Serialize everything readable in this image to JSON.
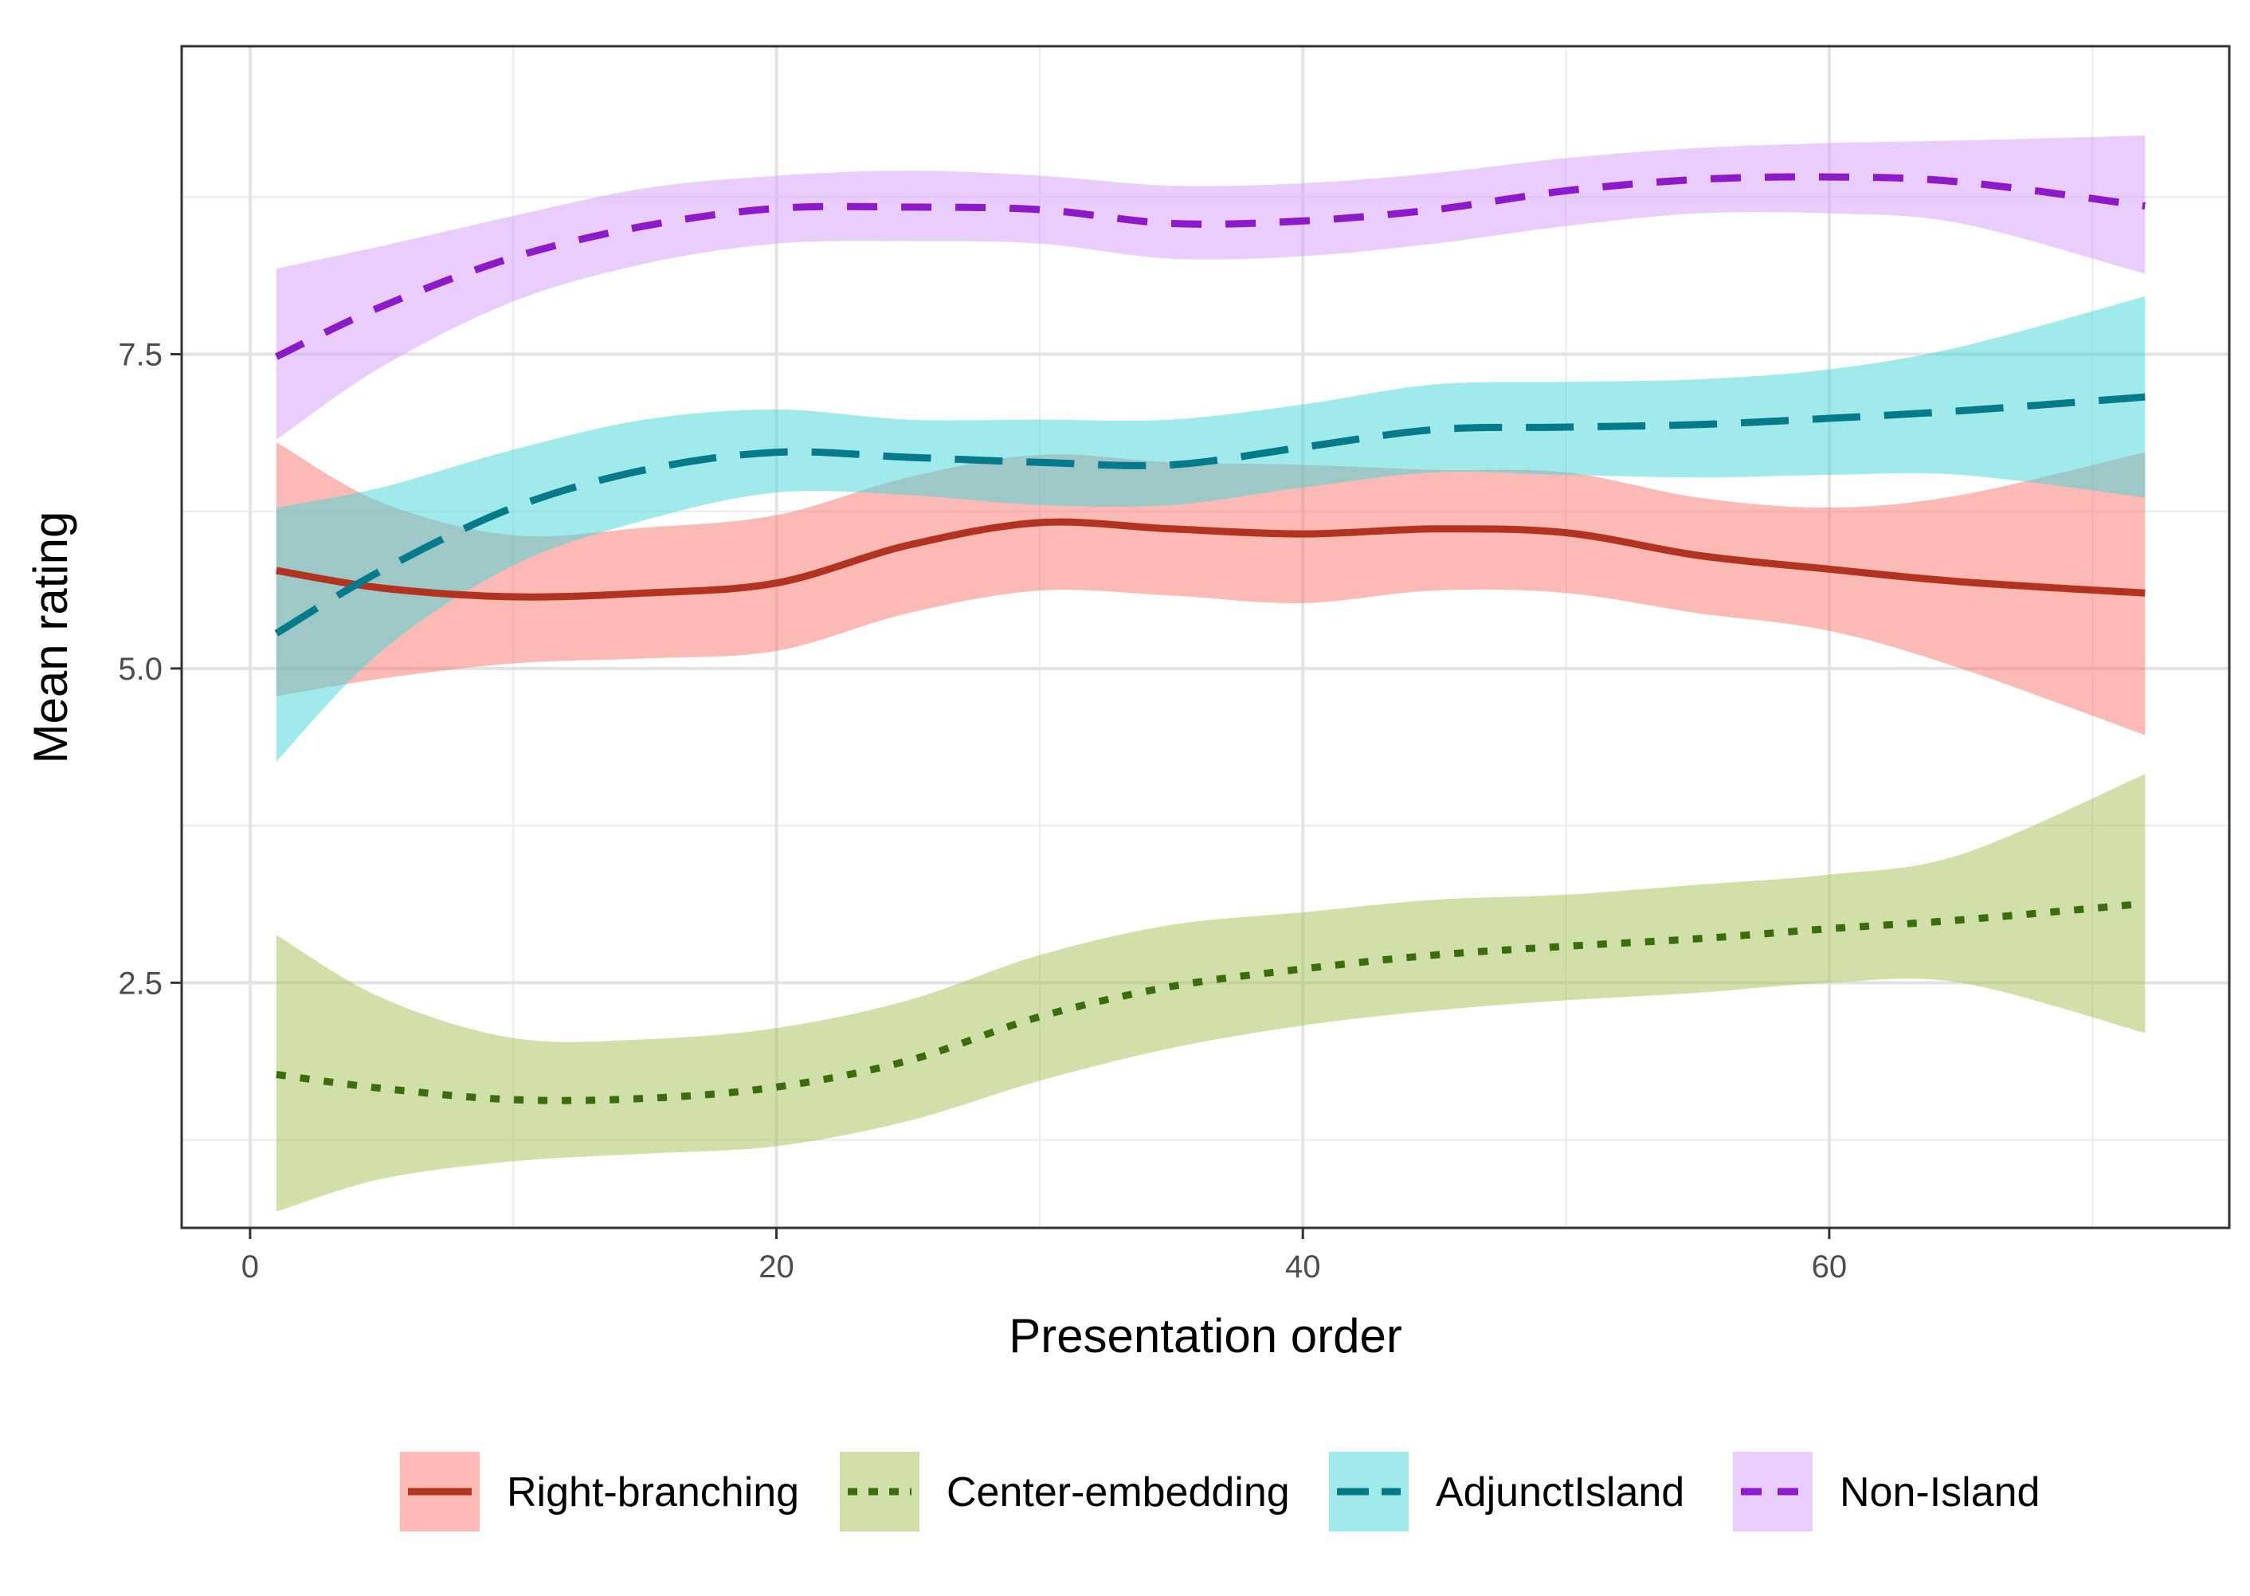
{
  "chart_data": {
    "type": "line",
    "title": "",
    "xlabel": "Presentation order",
    "ylabel": "Mean rating",
    "xlim": [
      -2.6,
      75.2
    ],
    "ylim": [
      0.55,
      9.95
    ],
    "x_ticks": [
      0,
      20,
      40,
      60
    ],
    "x_tick_labels": [
      "0",
      "20",
      "40",
      "60"
    ],
    "y_ticks": [
      2.5,
      5.0,
      7.5
    ],
    "y_tick_labels": [
      "2.5",
      "5.0",
      "7.5"
    ],
    "grid": true,
    "legend_position": "bottom",
    "series": [
      {
        "name": "Right-branching",
        "color": "#B2331F",
        "fill": "#F8766D",
        "dash": "solid",
        "x": [
          1,
          5,
          10,
          15,
          20,
          25,
          30,
          35,
          40,
          45,
          50,
          55,
          60,
          65,
          72
        ],
        "y": [
          5.78,
          5.64,
          5.57,
          5.6,
          5.68,
          5.98,
          6.16,
          6.11,
          6.07,
          6.11,
          6.08,
          5.9,
          5.79,
          5.69,
          5.6
        ],
        "lower": [
          4.78,
          4.92,
          5.04,
          5.08,
          5.14,
          5.44,
          5.62,
          5.58,
          5.52,
          5.62,
          5.6,
          5.44,
          5.3,
          5.0,
          4.47
        ],
        "upper": [
          6.8,
          6.32,
          6.06,
          6.12,
          6.22,
          6.52,
          6.7,
          6.64,
          6.62,
          6.58,
          6.56,
          6.36,
          6.28,
          6.38,
          6.72
        ]
      },
      {
        "name": "Center-embedding",
        "color": "#3A6E0C",
        "fill": "#A3C252",
        "dash": "dotted",
        "x": [
          1,
          5,
          10,
          15,
          20,
          25,
          30,
          35,
          40,
          45,
          50,
          55,
          60,
          65,
          72
        ],
        "y": [
          1.77,
          1.66,
          1.57,
          1.58,
          1.67,
          1.88,
          2.23,
          2.47,
          2.61,
          2.72,
          2.79,
          2.85,
          2.93,
          3.0,
          3.13
        ],
        "lower": [
          0.68,
          0.94,
          1.08,
          1.14,
          1.2,
          1.4,
          1.72,
          1.98,
          2.16,
          2.28,
          2.36,
          2.42,
          2.5,
          2.5,
          2.1
        ],
        "upper": [
          2.88,
          2.38,
          2.06,
          2.05,
          2.14,
          2.36,
          2.72,
          2.96,
          3.06,
          3.16,
          3.2,
          3.28,
          3.36,
          3.52,
          4.16
        ]
      },
      {
        "name": "AdjunctIsland",
        "color": "#047A8A",
        "fill": "#41D5DA",
        "dash": "longdash",
        "x": [
          1,
          5,
          10,
          15,
          20,
          25,
          30,
          35,
          40,
          45,
          50,
          55,
          60,
          65,
          72
        ],
        "y": [
          5.28,
          5.78,
          6.28,
          6.58,
          6.72,
          6.68,
          6.64,
          6.62,
          6.76,
          6.9,
          6.92,
          6.94,
          6.99,
          7.05,
          7.16
        ],
        "lower": [
          4.26,
          5.14,
          5.82,
          6.18,
          6.4,
          6.38,
          6.3,
          6.3,
          6.44,
          6.56,
          6.54,
          6.52,
          6.54,
          6.54,
          6.36
        ],
        "upper": [
          6.28,
          6.44,
          6.74,
          6.98,
          7.06,
          6.98,
          6.98,
          6.98,
          7.1,
          7.26,
          7.28,
          7.3,
          7.38,
          7.56,
          7.96
        ]
      },
      {
        "name": "Non-Island",
        "color": "#8C1ACB",
        "fill": "#D19BFB",
        "dash": "dashed",
        "x": [
          1,
          5,
          10,
          15,
          20,
          25,
          30,
          35,
          40,
          45,
          50,
          55,
          60,
          65,
          72
        ],
        "y": [
          7.48,
          7.88,
          8.27,
          8.52,
          8.66,
          8.67,
          8.65,
          8.54,
          8.56,
          8.65,
          8.8,
          8.89,
          8.91,
          8.87,
          8.68
        ],
        "lower": [
          6.82,
          7.4,
          7.92,
          8.22,
          8.38,
          8.4,
          8.38,
          8.26,
          8.28,
          8.38,
          8.52,
          8.62,
          8.62,
          8.54,
          8.14
        ],
        "upper": [
          8.18,
          8.36,
          8.6,
          8.82,
          8.92,
          8.96,
          8.92,
          8.84,
          8.86,
          8.94,
          9.06,
          9.14,
          9.18,
          9.2,
          9.24
        ]
      }
    ]
  }
}
